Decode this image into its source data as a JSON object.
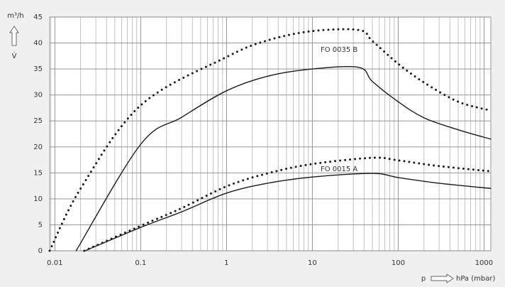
{
  "chart_data": {
    "type": "line",
    "y_unit": "m³/h",
    "y_symbol": "V̇",
    "x_symbol": "p",
    "x_unit": "hPa (mbar)",
    "xscale": "log",
    "grid": true,
    "minor_grid": true,
    "xlim": [
      0.0087,
      1200
    ],
    "xticks": [
      0.01,
      0.1,
      1,
      10,
      100,
      1000
    ],
    "ylim": [
      0,
      45
    ],
    "yticks": [
      0,
      5,
      10,
      15,
      20,
      25,
      30,
      35,
      40,
      45
    ],
    "series": [
      {
        "style": "dotted",
        "color": "#1a1a1a",
        "x": [
          0.0087,
          0.02,
          0.1,
          1,
          3,
          10,
          35,
          50,
          100,
          200,
          500,
          1200
        ],
        "values": [
          0,
          12,
          28,
          37.3,
          40.5,
          42.3,
          42.5,
          40.4,
          36,
          32.4,
          28.7,
          27
        ]
      },
      {
        "style": "solid",
        "color": "#1a1a1a",
        "x": [
          0.0177,
          0.1,
          0.3,
          1,
          3,
          10,
          35,
          50,
          100,
          200,
          500,
          1200
        ],
        "values": [
          0,
          20.5,
          25.7,
          30.8,
          33.6,
          35,
          35.3,
          32.6,
          28.7,
          25.6,
          23.3,
          21.5
        ]
      },
      {
        "style": "dotted",
        "color": "#1a1a1a",
        "x": [
          0.022,
          0.1,
          0.3,
          1,
          3,
          10,
          50,
          100,
          300,
          1200
        ],
        "values": [
          0,
          4.8,
          8.2,
          12.4,
          14.9,
          16.7,
          17.9,
          17.4,
          16.3,
          15.3
        ]
      },
      {
        "style": "solid",
        "color": "#1a1a1a",
        "x": [
          0.0225,
          0.1,
          0.3,
          1,
          3,
          10,
          50,
          100,
          300,
          1200
        ],
        "values": [
          0,
          4.5,
          7.5,
          11.1,
          13,
          14.2,
          14.9,
          14.1,
          13,
          12
        ]
      }
    ],
    "annotations": [
      "FO 0035 B",
      "FO 0015 A"
    ]
  }
}
